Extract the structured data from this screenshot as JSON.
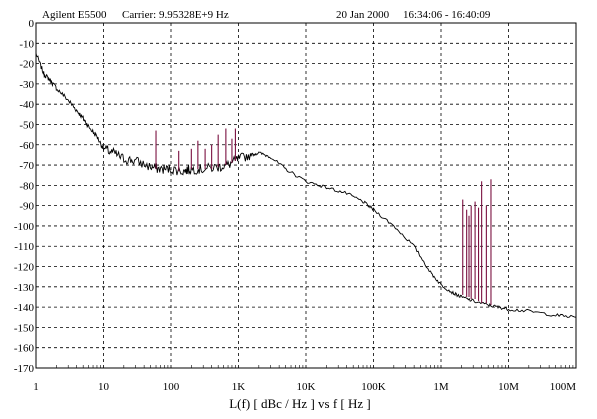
{
  "header": {
    "instrument": "Agilent E5500",
    "carrier": "Carrier: 9.95328E+9 Hz",
    "date": "20 Jan 2000",
    "time_range": "16:34:06 - 16:40:09"
  },
  "chart_data": {
    "type": "line",
    "title": "",
    "xlabel": "L(f) [ dBc / Hz ] vs f [ Hz ]",
    "ylabel": "",
    "x_scale": "log",
    "xlim": [
      1,
      100000000
    ],
    "ylim": [
      -170,
      0
    ],
    "x_ticks": [
      {
        "value": 1,
        "label": "1"
      },
      {
        "value": 10,
        "label": "10"
      },
      {
        "value": 100,
        "label": "100"
      },
      {
        "value": 1000,
        "label": "1K"
      },
      {
        "value": 10000,
        "label": "10K"
      },
      {
        "value": 100000,
        "label": "100K"
      },
      {
        "value": 1000000,
        "label": "1M"
      },
      {
        "value": 10000000,
        "label": "10M"
      },
      {
        "value": 100000000,
        "label": "100M"
      }
    ],
    "y_ticks": [
      0,
      -10,
      -20,
      -30,
      -40,
      -50,
      -60,
      -70,
      -80,
      -90,
      -100,
      -110,
      -120,
      -130,
      -140,
      -150,
      -160,
      -170
    ],
    "grid": true,
    "colors": {
      "trace": "#000000",
      "spurs": "#7a1040",
      "grid": "#000000"
    },
    "series": [
      {
        "points": [
          [
            1.0,
            -15
          ],
          [
            1.3,
            -25
          ],
          [
            1.6,
            -28
          ],
          [
            2.0,
            -32
          ],
          [
            3.0,
            -38
          ],
          [
            4.0,
            -43
          ],
          [
            5.0,
            -47
          ],
          [
            6.0,
            -51
          ],
          [
            8.0,
            -56
          ],
          [
            10,
            -62
          ],
          [
            14,
            -64
          ],
          [
            20,
            -67
          ],
          [
            30,
            -68
          ],
          [
            50,
            -71
          ],
          [
            70,
            -72
          ],
          [
            100,
            -72
          ],
          [
            150,
            -73
          ],
          [
            200,
            -72
          ],
          [
            300,
            -72
          ],
          [
            500,
            -71
          ],
          [
            700,
            -70
          ],
          [
            1000,
            -67
          ],
          [
            1500,
            -65
          ],
          [
            2000,
            -64
          ],
          [
            3000,
            -66
          ],
          [
            5000,
            -72
          ],
          [
            10000,
            -78
          ],
          [
            20000,
            -81
          ],
          [
            40000,
            -84
          ],
          [
            70000,
            -88
          ],
          [
            100000,
            -92
          ],
          [
            200000,
            -100
          ],
          [
            400000,
            -110
          ],
          [
            700000,
            -123
          ],
          [
            1000000,
            -129
          ],
          [
            1500000,
            -133
          ],
          [
            2000000,
            -135
          ],
          [
            3000000,
            -137
          ],
          [
            5000000,
            -139
          ],
          [
            7000000,
            -140
          ],
          [
            10000000,
            -141
          ],
          [
            20000000,
            -142
          ],
          [
            50000000,
            -144
          ],
          [
            100000000,
            -145
          ]
        ]
      },
      {
        "kind": "spurs",
        "points": [
          [
            60,
            -72,
            -53
          ],
          [
            130,
            -73,
            -63
          ],
          [
            200,
            -72,
            -62
          ],
          [
            250,
            -72,
            -58
          ],
          [
            320,
            -72,
            -62
          ],
          [
            400,
            -72,
            -60
          ],
          [
            500,
            -71,
            -55
          ],
          [
            650,
            -70,
            -52
          ],
          [
            800,
            -69,
            -57
          ],
          [
            900,
            -68,
            -52
          ],
          [
            2100000,
            -134,
            -87
          ],
          [
            2400000,
            -135,
            -92
          ],
          [
            2600000,
            -135,
            -95
          ],
          [
            2800000,
            -136,
            -90
          ],
          [
            3200000,
            -136,
            -88
          ],
          [
            3600000,
            -137,
            -91
          ],
          [
            4000000,
            -138,
            -78
          ],
          [
            4700000,
            -138,
            -90
          ],
          [
            5500000,
            -139,
            -77
          ]
        ]
      }
    ]
  }
}
